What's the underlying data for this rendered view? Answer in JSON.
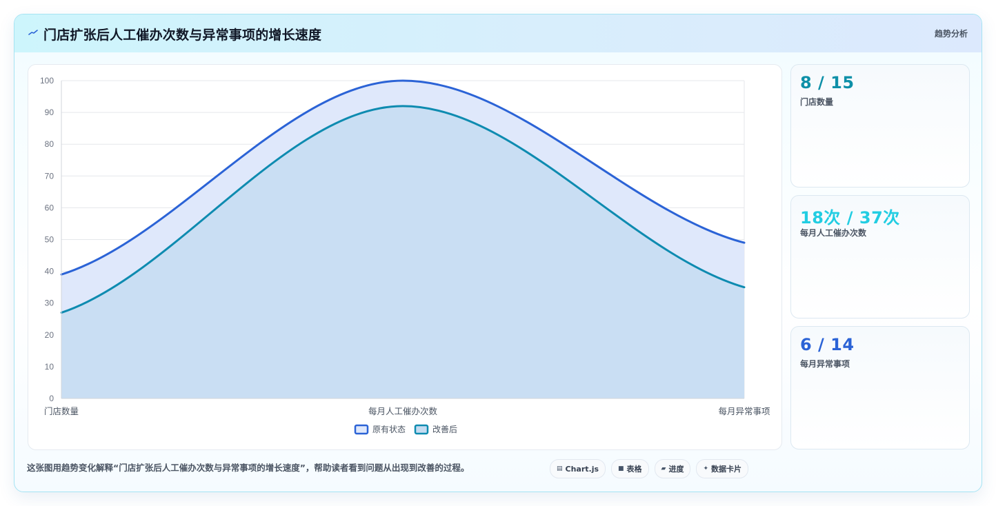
{
  "header": {
    "title": "门店扩张后人工催办次数与异常事项的增长速度",
    "tag": "趋势分析"
  },
  "stats": [
    {
      "value": "8 / 15",
      "label": "门店数量",
      "color": "#0e90a8"
    },
    {
      "value": "18次 / 37次",
      "label": "每月人工催办次数",
      "color": "#22cde2"
    },
    {
      "value": "6 / 14",
      "label": "每月异常事项",
      "color": "#2b63d6"
    }
  ],
  "footer": {
    "description": "这张图用趋势变化解释“门店扩张后人工催办次数与异常事项的增长速度”，帮助读者看到问题从出现到改善的过程。",
    "pills": [
      {
        "icon": "chart-icon",
        "glyph": "▤",
        "label": "Chart.js"
      },
      {
        "icon": "table-icon",
        "glyph": "■",
        "label": "表格"
      },
      {
        "icon": "progress-icon",
        "glyph": "▰",
        "label": "进度"
      },
      {
        "icon": "card-icon",
        "glyph": "✦",
        "label": "数据卡片"
      }
    ]
  },
  "chart_data": {
    "type": "area",
    "categories": [
      "门店数量",
      "每月人工催办次数",
      "每月异常事项"
    ],
    "series": [
      {
        "name": "原有状态",
        "values": [
          39,
          100,
          49
        ],
        "color": "#2b63d6",
        "fill": "#dfe8fb"
      },
      {
        "name": "改善后",
        "values": [
          27,
          92,
          35
        ],
        "color": "#0e8bb0",
        "fill": "#c5dcf1"
      }
    ],
    "ylim": [
      0,
      100
    ],
    "yticks": [
      0,
      10,
      20,
      30,
      40,
      50,
      60,
      70,
      80,
      90,
      100
    ],
    "grid": true,
    "legend": "bottom"
  }
}
